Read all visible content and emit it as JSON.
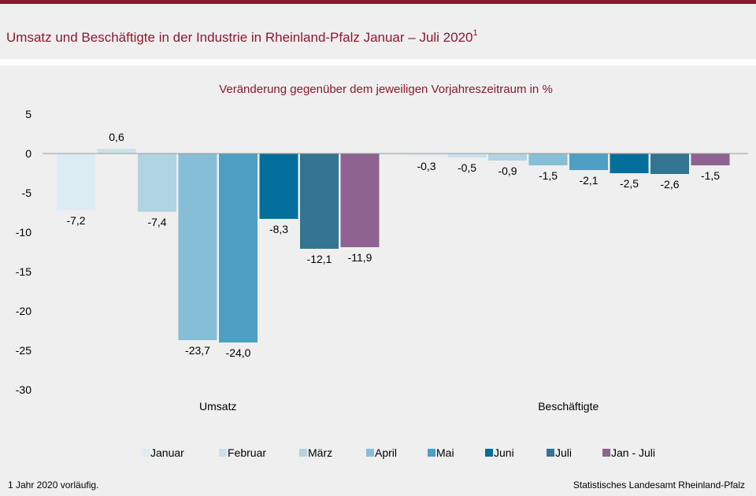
{
  "header": {
    "title": "Umsatz und Beschäftigte in der Industrie in Rheinland-Pfalz Januar – Juli 2020",
    "title_sup": "1"
  },
  "footer": {
    "footnote": "1 Jahr 2020 vorläufig.",
    "source": "Statistisches Landesamt Rheinland-Pfalz"
  },
  "chart_data": {
    "type": "bar",
    "title": "Veränderung gegenüber dem jeweiligen Vorjahreszeitraum in %",
    "categories": [
      "Umsatz",
      "Beschäftigte"
    ],
    "ylim": [
      -30,
      5
    ],
    "yticks": [
      5,
      0,
      -5,
      -10,
      -15,
      -20,
      -25,
      -30
    ],
    "ytick_labels": [
      "5",
      "0",
      "-5",
      "-10",
      "-15",
      "-20",
      "-25",
      "-30"
    ],
    "grid": false,
    "legend_position": "bottom",
    "series": [
      {
        "name": "Januar",
        "color": "#dbecf2",
        "values": [
          -7.2,
          -0.3
        ],
        "labels": [
          "-7,2",
          "-0,3"
        ]
      },
      {
        "name": "Februar",
        "color": "#c9e2ec",
        "values": [
          0.6,
          -0.5
        ],
        "labels": [
          "0,6",
          "-0,5"
        ]
      },
      {
        "name": "März",
        "color": "#b1d4e3",
        "values": [
          -7.4,
          -0.9
        ],
        "labels": [
          "-7,4",
          "-0,9"
        ]
      },
      {
        "name": "April",
        "color": "#86bed8",
        "values": [
          -23.7,
          -1.5
        ],
        "labels": [
          "-23,7",
          "-1,5"
        ]
      },
      {
        "name": "Mai",
        "color": "#4d9fc4",
        "values": [
          -24.0,
          -2.1
        ],
        "labels": [
          "-24,0",
          "-2,1"
        ]
      },
      {
        "name": "Juni",
        "color": "#056f9b",
        "values": [
          -8.3,
          -2.5
        ],
        "labels": [
          "-8,3",
          "-2,5"
        ]
      },
      {
        "name": "Juli",
        "color": "#337590",
        "values": [
          -12.1,
          -2.6
        ],
        "labels": [
          "-12,1",
          "-2,6"
        ]
      },
      {
        "name": "Jan - Juli",
        "color": "#8f6390",
        "values": [
          -11.9,
          -1.5
        ],
        "labels": [
          "-11,9",
          "-1,5"
        ]
      }
    ]
  }
}
